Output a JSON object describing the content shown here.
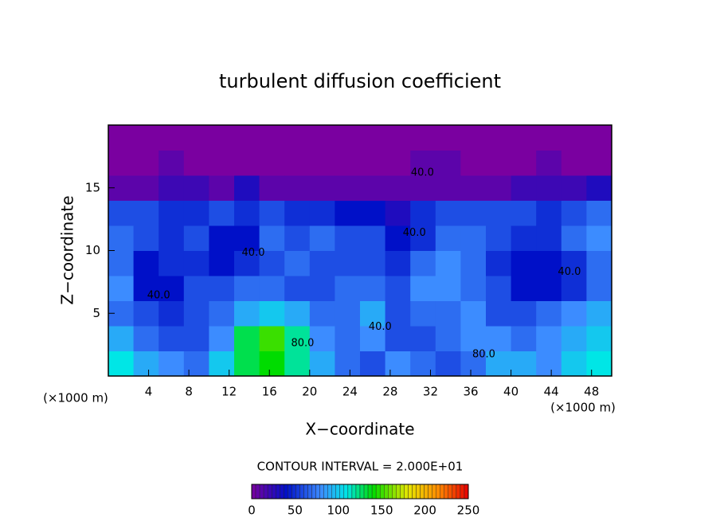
{
  "chart_data": {
    "type": "heatmap",
    "title": "turbulent diffusion coefficient",
    "x_label": "X−coordinate",
    "y_label": "Z−coordinate",
    "y_unit_label": "(×1000 m)",
    "x_unit_label": "(×1000 m)",
    "contour_note": "CONTOUR INTERVAL = 2.000E+01",
    "xlim": [
      0,
      50
    ],
    "ylim": [
      0,
      20
    ],
    "xticks": [
      4,
      8,
      12,
      16,
      20,
      24,
      28,
      32,
      36,
      40,
      44,
      48
    ],
    "yticks": [
      5,
      10,
      15
    ],
    "x": [
      1.25,
      3.75,
      6.25,
      8.75,
      11.25,
      13.75,
      16.25,
      18.75,
      21.25,
      23.75,
      26.25,
      28.75,
      31.25,
      33.75,
      36.25,
      38.75,
      41.25,
      43.75,
      46.25,
      48.75
    ],
    "y": [
      1,
      3,
      5,
      7,
      9,
      11,
      13,
      15,
      17,
      19
    ],
    "z": [
      [
        110,
        90,
        80,
        70,
        100,
        130,
        140,
        120,
        90,
        70,
        60,
        80,
        70,
        60,
        70,
        90,
        90,
        80,
        100,
        110
      ],
      [
        90,
        70,
        60,
        60,
        80,
        130,
        150,
        120,
        80,
        70,
        80,
        60,
        60,
        70,
        80,
        80,
        70,
        80,
        90,
        100
      ],
      [
        70,
        60,
        50,
        60,
        70,
        90,
        100,
        90,
        70,
        70,
        90,
        60,
        70,
        70,
        80,
        60,
        60,
        70,
        80,
        90
      ],
      [
        80,
        40,
        40,
        60,
        60,
        70,
        70,
        60,
        60,
        70,
        70,
        60,
        80,
        80,
        70,
        60,
        40,
        40,
        50,
        70
      ],
      [
        70,
        40,
        50,
        50,
        40,
        50,
        60,
        70,
        60,
        60,
        60,
        50,
        70,
        80,
        70,
        50,
        40,
        40,
        50,
        70
      ],
      [
        70,
        60,
        50,
        60,
        40,
        40,
        70,
        60,
        70,
        60,
        60,
        40,
        50,
        70,
        70,
        60,
        50,
        50,
        70,
        80
      ],
      [
        60,
        60,
        50,
        50,
        60,
        50,
        60,
        50,
        50,
        40,
        40,
        30,
        50,
        60,
        60,
        60,
        60,
        50,
        60,
        70
      ],
      [
        10,
        10,
        20,
        20,
        10,
        30,
        10,
        10,
        10,
        10,
        10,
        10,
        10,
        10,
        10,
        10,
        20,
        20,
        20,
        30
      ],
      [
        0,
        0,
        10,
        0,
        0,
        0,
        0,
        0,
        0,
        0,
        0,
        0,
        10,
        10,
        0,
        0,
        0,
        10,
        0,
        0
      ],
      [
        0,
        0,
        0,
        0,
        0,
        0,
        0,
        0,
        0,
        0,
        0,
        0,
        0,
        0,
        0,
        0,
        0,
        0,
        0,
        0
      ]
    ],
    "colorscale": [
      [
        0,
        "#7a00a0"
      ],
      [
        40,
        "#0010c8"
      ],
      [
        80,
        "#3c8cff"
      ],
      [
        110,
        "#00e6e6"
      ],
      [
        140,
        "#00dc00"
      ],
      [
        180,
        "#e6e600"
      ],
      [
        215,
        "#ff8c00"
      ],
      [
        250,
        "#e60000"
      ]
    ],
    "clim": [
      0,
      250
    ],
    "cticks": [
      0,
      50,
      100,
      150,
      200,
      250
    ],
    "annotations": [
      {
        "text": "40.0",
        "x": 5.0,
        "y": 6.4
      },
      {
        "text": "80.0",
        "x": 19.3,
        "y": 2.6
      },
      {
        "text": "40.0",
        "x": 14.4,
        "y": 9.8
      },
      {
        "text": "40.0",
        "x": 30.4,
        "y": 11.4
      },
      {
        "text": "40.0",
        "x": 27.0,
        "y": 3.9
      },
      {
        "text": "80.0",
        "x": 37.3,
        "y": 1.7
      },
      {
        "text": "40.0",
        "x": 45.8,
        "y": 8.3
      },
      {
        "text": "40.0",
        "x": 31.2,
        "y": 16.2
      }
    ]
  }
}
